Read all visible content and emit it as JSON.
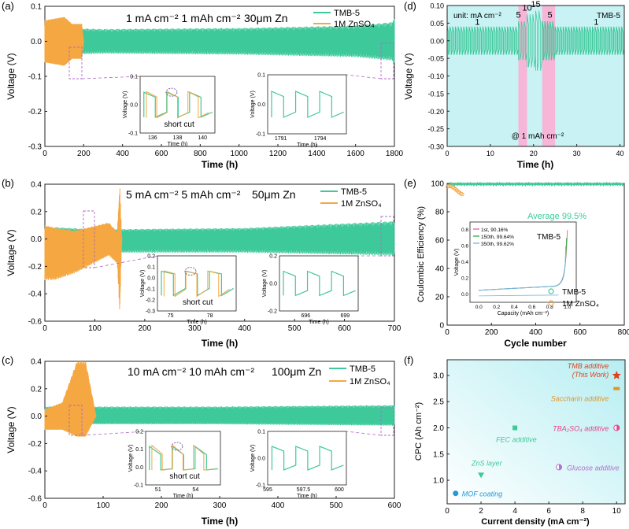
{
  "colors": {
    "tmb": "#3ec99a",
    "znso4": "#f5a742",
    "inset_dash": "#b06ac8",
    "short": "#7b5fb0",
    "cyan_bg": "#c8f2f4",
    "pink": "#f7b6d8",
    "pink_text": "#e0478c",
    "orange_text": "#e0962a",
    "blue": "#1f9ad6",
    "purple": "#b46fd0",
    "red": "#e0401a"
  },
  "chart_data": [
    {
      "id": "a",
      "panel_label": "(a)",
      "type": "line",
      "title": "1 mA cm⁻² 1 mAh cm⁻²",
      "title2": "30μm Zn",
      "xlabel": "Time (h)",
      "ylabel": "Voltage (V)",
      "xlim": [
        0,
        1800
      ],
      "ylim": [
        -0.3,
        0.1
      ],
      "xticks": [
        0,
        200,
        400,
        600,
        800,
        1000,
        1200,
        1400,
        1600,
        1800
      ],
      "yticks": [
        -0.3,
        -0.2,
        -0.1,
        0.0,
        0.1
      ],
      "series": [
        {
          "name": "TMB-5",
          "color": "tmb",
          "band": [
            [
              0,
              0.04,
              -0.04
            ],
            [
              300,
              0.035,
              -0.035
            ],
            [
              1000,
              0.038,
              -0.038
            ],
            [
              1600,
              0.045,
              -0.045
            ],
            [
              1790,
              0.055,
              -0.055
            ],
            [
              1800,
              0.07,
              -0.07
            ]
          ]
        },
        {
          "name": "1M ZnSO₄",
          "color": "znso4",
          "band": [
            [
              0,
              0.06,
              -0.06
            ],
            [
              100,
              0.07,
              -0.07
            ],
            [
              140,
              0.05,
              -0.05
            ],
            [
              190,
              0.05,
              -0.05
            ],
            [
              200,
              0.0,
              0.0
            ]
          ],
          "end": 200
        }
      ],
      "insets": [
        {
          "name": "a-inset-1",
          "xlabel": "Time (h)",
          "ylabel": "Voltage (V)",
          "xlim": [
            135,
            141
          ],
          "ylim": [
            -0.1,
            0.1
          ],
          "xticks": [
            136,
            138,
            140
          ],
          "yticks": [
            -0.1,
            0.0,
            0.1
          ],
          "annotation": "short cut",
          "kind": "short"
        },
        {
          "name": "a-inset-2",
          "xlabel": "Time (h)",
          "ylabel": "Voltage (V)",
          "xlim": [
            1790,
            1796
          ],
          "ylim": [
            -0.1,
            0.1
          ],
          "xticks": [
            1791,
            1794
          ],
          "yticks": [
            -0.1,
            0.0,
            0.1
          ],
          "kind": "normal"
        }
      ]
    },
    {
      "id": "b",
      "panel_label": "(b)",
      "type": "line",
      "title": "5 mA cm⁻² 5 mAh cm⁻²",
      "title2": "50μm Zn",
      "xlabel": "Time (h)",
      "ylabel": "Voltage (V)",
      "xlim": [
        0,
        700
      ],
      "ylim": [
        -0.6,
        0.4
      ],
      "xticks": [
        0,
        100,
        200,
        300,
        400,
        500,
        600,
        700
      ],
      "yticks": [
        -0.6,
        -0.4,
        -0.2,
        0.0,
        0.2,
        0.4
      ],
      "series": [
        {
          "name": "TMB-5",
          "color": "tmb",
          "band": [
            [
              0,
              0.09,
              -0.13
            ],
            [
              100,
              0.07,
              -0.1
            ],
            [
              400,
              0.08,
              -0.1
            ],
            [
              700,
              0.13,
              -0.12
            ]
          ]
        },
        {
          "name": "1M ZnSO₄",
          "color": "znso4",
          "band": [
            [
              0,
              0.1,
              -0.3
            ],
            [
              20,
              0.08,
              -0.3
            ],
            [
              60,
              0.06,
              -0.25
            ],
            [
              128,
              0.12,
              -0.12
            ],
            [
              145,
              0.05,
              -0.18
            ],
            [
              150,
              0.4,
              -0.55
            ],
            [
              154,
              0.0,
              0.0
            ]
          ],
          "end": 155
        }
      ],
      "insets": [
        {
          "name": "b-inset-1",
          "xlabel": "Time (h)",
          "ylabel": "Voltage (V)",
          "xlim": [
            74,
            80
          ],
          "ylim": [
            -0.3,
            0.2
          ],
          "xticks": [
            75,
            78
          ],
          "yticks": [
            -0.3,
            -0.2,
            -0.1,
            0.0,
            0.1,
            0.2
          ],
          "annotation": "short cut",
          "kind": "short"
        },
        {
          "name": "b-inset-2",
          "xlabel": "Time (h)",
          "ylabel": "Voltage (V)",
          "xlim": [
            694,
            700
          ],
          "ylim": [
            -0.2,
            0.2
          ],
          "xticks": [
            696,
            699
          ],
          "yticks": [
            -0.2,
            0.0,
            0.2
          ],
          "kind": "normal"
        }
      ]
    },
    {
      "id": "c",
      "panel_label": "(c)",
      "type": "line",
      "title": "10 mA cm⁻² 10 mAh cm⁻²",
      "title2": "100μm Zn",
      "xlabel": "Time (h)",
      "ylabel": "Voltage (V)",
      "xlim": [
        0,
        600
      ],
      "ylim": [
        -0.6,
        0.4
      ],
      "xticks": [
        0,
        100,
        200,
        300,
        400,
        500,
        600
      ],
      "yticks": [
        -0.6,
        -0.4,
        -0.2,
        0.0,
        0.2,
        0.4
      ],
      "series": [
        {
          "name": "TMB-5",
          "color": "tmb",
          "band": [
            [
              0,
              0.07,
              -0.06
            ],
            [
              300,
              0.07,
              -0.06
            ],
            [
              600,
              0.08,
              -0.07
            ]
          ]
        },
        {
          "name": "1M ZnSO₄",
          "color": "znso4",
          "band": [
            [
              0,
              0.05,
              -0.1
            ],
            [
              30,
              0.1,
              -0.1
            ],
            [
              55,
              0.4,
              -0.15
            ],
            [
              70,
              0.4,
              -0.15
            ],
            [
              88,
              0.0,
              0.0
            ]
          ],
          "end": 88
        }
      ],
      "insets": [
        {
          "name": "c-inset-1",
          "xlabel": "Time (h)",
          "ylabel": "Voltage (V)",
          "xlim": [
            50,
            56
          ],
          "ylim": [
            -0.1,
            0.2
          ],
          "xticks": [
            51,
            54
          ],
          "yticks": [
            -0.1,
            0.0,
            0.1,
            0.2
          ],
          "annotation": "short cut",
          "kind": "short"
        },
        {
          "name": "c-inset-2",
          "xlabel": "Time (h)",
          "ylabel": "Voltage (V)",
          "xlim": [
            595,
            600.5
          ],
          "ylim": [
            -0.1,
            0.1
          ],
          "xticks": [
            595.0,
            597.5,
            600.0
          ],
          "yticks": [
            -0.1,
            0.0,
            0.1
          ],
          "kind": "normal"
        }
      ]
    },
    {
      "id": "d",
      "panel_label": "(d)",
      "type": "line",
      "unit_label": "unit: mA cm⁻²",
      "series_label": "TMB-5",
      "bottom_label": "@ 1 mAh cm⁻²",
      "xlabel": "Time (h)",
      "ylabel": "Voltage (V)",
      "xlim": [
        0,
        41
      ],
      "ylim": [
        -0.3,
        0.1
      ],
      "xticks": [
        0,
        10,
        20,
        30,
        40
      ],
      "yticks": [
        -0.3,
        -0.25,
        -0.2,
        -0.15,
        -0.1,
        -0.05,
        0.0,
        0.05,
        0.1
      ],
      "rate_labels": [
        {
          "text": "1",
          "x": 7,
          "y": 0.045
        },
        {
          "text": "5",
          "x": 16.5,
          "y": 0.065
        },
        {
          "text": "10",
          "x": 18.5,
          "y": 0.085
        },
        {
          "text": "15",
          "x": 20.5,
          "y": 0.095
        },
        {
          "text": "5",
          "x": 23.8,
          "y": 0.065
        },
        {
          "text": "1",
          "x": 34.5,
          "y": 0.045
        }
      ],
      "segments": [
        {
          "from": 0,
          "to": 16.5,
          "amp": 0.04
        },
        {
          "from": 16.5,
          "to": 18.5,
          "amp": 0.055
        },
        {
          "from": 18.5,
          "to": 20.5,
          "amp": 0.075
        },
        {
          "from": 20.5,
          "to": 22,
          "amp": 0.085
        },
        {
          "from": 22,
          "to": 25,
          "amp": 0.055
        },
        {
          "from": 25,
          "to": 41,
          "amp": 0.04
        }
      ],
      "pink_bands": [
        [
          16.5,
          18.5
        ],
        [
          22,
          25
        ]
      ]
    },
    {
      "id": "e",
      "panel_label": "(e)",
      "type": "scatter",
      "xlabel": "Cycle number",
      "ylabel": "Coulombic Efficiency (%)",
      "xlim": [
        0,
        800
      ],
      "ylim": [
        0,
        100
      ],
      "xticks": [
        0,
        200,
        400,
        600,
        800
      ],
      "yticks": [
        0,
        20,
        40,
        60,
        80,
        100
      ],
      "average_label": "Average 99.5%",
      "series": [
        {
          "name": "TMB-5",
          "color": "tmb",
          "value": 99.5
        },
        {
          "name": "1M ZnSO₄",
          "color": "znso4",
          "end": 70
        }
      ],
      "inset": {
        "label": "TMB-5",
        "xlabel": "Capacity (mAh cm⁻²)",
        "ylabel": "Voltage (V)",
        "xlim": [
          -0.1,
          1.1
        ],
        "ylim": [
          -0.1,
          0.9
        ],
        "xticks": [
          0.0,
          0.2,
          0.4,
          0.6,
          0.8,
          1.0
        ],
        "yticks": [
          0.0,
          0.2,
          0.4,
          0.6,
          0.8
        ],
        "legend": [
          {
            "name": "1st, 90.16%",
            "color": "#f06aa8"
          },
          {
            "name": "150th, 99.64%",
            "color": "#37b44a"
          },
          {
            "name": "350th, 99.62%",
            "color": "#7ab8e8"
          }
        ]
      }
    },
    {
      "id": "f",
      "panel_label": "(f)",
      "type": "scatter",
      "xlabel": "Current density (mA cm⁻²)",
      "ylabel": "CPC (Ah cm⁻²)",
      "xlim": [
        0,
        10.5
      ],
      "ylim": [
        0.55,
        3.3
      ],
      "xticks": [
        0,
        2,
        4,
        6,
        8,
        10
      ],
      "yticks": [
        1.0,
        1.5,
        2.0,
        2.5,
        3.0
      ],
      "points": [
        {
          "label": "MOF coating",
          "x": 0.5,
          "y": 0.75,
          "color": "blue",
          "marker": "circle"
        },
        {
          "label": "ZnS layer",
          "x": 2,
          "y": 1.1,
          "color": "tmb",
          "marker": "tri"
        },
        {
          "label": "FEC additive",
          "x": 4,
          "y": 2.0,
          "color": "tmb",
          "marker": "square"
        },
        {
          "label": "Glucose additive",
          "x": 6.6,
          "y": 1.25,
          "color": "purple",
          "marker": "half"
        },
        {
          "label": "TBA₂SO₄ additive",
          "x": 10,
          "y": 2.0,
          "color": "pink_text",
          "marker": "half"
        },
        {
          "label": "Saccharin additive",
          "x": 10,
          "y": 2.75,
          "color": "orange_text",
          "marker": "rect"
        },
        {
          "label": "TMB additive",
          "label2": "(This Work)",
          "x": 10,
          "y": 3.0,
          "color": "red",
          "marker": "star"
        }
      ]
    }
  ]
}
